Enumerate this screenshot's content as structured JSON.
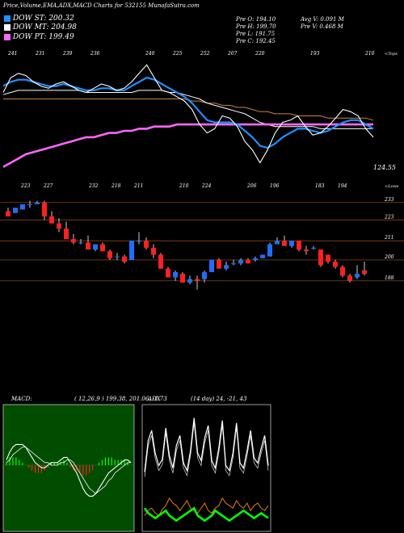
{
  "header": {
    "title": "Price,Volume,EMA,ADX,MACD Charts for 532155 MunafaSutra.com",
    "legend": [
      {
        "label": "DOW ST: 200.32",
        "color": "#1e90ff"
      },
      {
        "label": "DOW MT: 204.98",
        "color": "#ffffff"
      },
      {
        "label": "DOW PT: 199.49",
        "color": "#ff66ff"
      }
    ],
    "stats": {
      "open": "Pre  O: 194.10",
      "high": "Pre  H: 199.70",
      "low": "Pre  L: 191.75",
      "close": "Pre  C: 192.45",
      "avg_vol": "Avg V: 0.091 M",
      "pre_vol": "Pre  V: 0.468  M"
    }
  },
  "chart_data": [
    {
      "type": "line",
      "name": "ema-panel",
      "top_labels": [
        "241",
        "231",
        "239",
        "236",
        "",
        "240",
        "225",
        "252",
        "207",
        "220",
        "",
        "193",
        "",
        "210"
      ],
      "bottom_labels": [
        "223",
        "227",
        "",
        "232",
        "218",
        "211",
        "",
        "210",
        "224",
        "",
        "206",
        "196",
        "",
        "183",
        "194"
      ],
      "right_top_label": "<Tops",
      "right_bottom_label": "<Lows",
      "last_value_label": "124.55",
      "series": [
        {
          "name": "price",
          "color": "#ffffff",
          "values": [
            205,
            212,
            214,
            213,
            210,
            208,
            207,
            209,
            210,
            208,
            206,
            205,
            207,
            209,
            208,
            206,
            207,
            210,
            214,
            218,
            212,
            206,
            205,
            203,
            201,
            197,
            190,
            186,
            188,
            194,
            193,
            189,
            182,
            178,
            172,
            178,
            186,
            191,
            192,
            194,
            189,
            185,
            186,
            189,
            193,
            197,
            196,
            194,
            188,
            184
          ]
        },
        {
          "name": "ema-short",
          "color": "#1e90ff",
          "values": [
            208,
            210,
            211,
            211,
            210,
            209,
            208,
            208,
            209,
            208,
            207,
            206,
            206,
            207,
            207,
            206,
            206,
            208,
            210,
            212,
            211,
            209,
            207,
            205,
            203,
            200,
            196,
            192,
            191,
            191,
            191,
            190,
            187,
            184,
            180,
            179,
            181,
            184,
            186,
            188,
            188,
            187,
            186,
            187,
            189,
            191,
            192,
            192,
            190,
            188
          ]
        },
        {
          "name": "ema-mid",
          "color": "#ffffff",
          "values": [
            204,
            205,
            206,
            206,
            206,
            206,
            206,
            206,
            206,
            206,
            206,
            205,
            205,
            205,
            205,
            205,
            205,
            205,
            206,
            206,
            206,
            206,
            205,
            205,
            204,
            203,
            202,
            200,
            199,
            198,
            197,
            196,
            195,
            193,
            191,
            190,
            189,
            189,
            189,
            189,
            189,
            189,
            188,
            188,
            188,
            188,
            188,
            188,
            188,
            188
          ]
        },
        {
          "name": "ema-long",
          "color": "#cd853f",
          "values": [
            202,
            202,
            202,
            202,
            202,
            202,
            202,
            202,
            202,
            202,
            202,
            202,
            202,
            202,
            202,
            202,
            202,
            202,
            202,
            202,
            202,
            202,
            202,
            202,
            202,
            201,
            201,
            200,
            200,
            199,
            199,
            198,
            198,
            197,
            196,
            196,
            195,
            195,
            195,
            194,
            194,
            194,
            194,
            193,
            193,
            193,
            193,
            193,
            193,
            192
          ]
        },
        {
          "name": "ema-xlong",
          "color": "#ff66ff",
          "values": [
            170,
            172,
            174,
            176,
            177,
            178,
            179,
            180,
            181,
            182,
            183,
            184,
            184,
            185,
            186,
            186,
            187,
            187,
            188,
            188,
            189,
            189,
            189,
            190,
            190,
            190,
            190,
            190,
            190,
            190,
            190,
            190,
            190,
            190,
            190,
            190,
            190,
            190,
            190,
            190,
            190,
            190,
            190,
            190,
            190,
            190,
            190,
            190,
            190,
            190
          ]
        }
      ]
    },
    {
      "type": "candlestick",
      "name": "price-panel",
      "ylim": [
        180,
        238
      ],
      "yticks": [
        233,
        223,
        211,
        200,
        188
      ],
      "candles": [
        {
          "o": 228,
          "h": 230,
          "l": 225,
          "c": 225
        },
        {
          "o": 227,
          "h": 230,
          "l": 227,
          "c": 230
        },
        {
          "o": 229,
          "h": 232,
          "l": 229,
          "c": 232
        },
        {
          "o": 232,
          "h": 234,
          "l": 230,
          "c": 232
        },
        {
          "o": 232,
          "h": 234,
          "l": 232,
          "c": 233
        },
        {
          "o": 233,
          "h": 234,
          "l": 223,
          "c": 225
        },
        {
          "o": 225,
          "h": 228,
          "l": 221,
          "c": 221
        },
        {
          "o": 221,
          "h": 224,
          "l": 216,
          "c": 218
        },
        {
          "o": 218,
          "h": 222,
          "l": 212,
          "c": 212
        },
        {
          "o": 212,
          "h": 215,
          "l": 209,
          "c": 210
        },
        {
          "o": 210,
          "h": 212,
          "l": 209,
          "c": 210
        },
        {
          "o": 210,
          "h": 214,
          "l": 206,
          "c": 206
        },
        {
          "o": 206,
          "h": 209,
          "l": 205,
          "c": 209
        },
        {
          "o": 209,
          "h": 210,
          "l": 205,
          "c": 205
        },
        {
          "o": 205,
          "h": 206,
          "l": 200,
          "c": 201
        },
        {
          "o": 202,
          "h": 204,
          "l": 200,
          "c": 202
        },
        {
          "o": 202,
          "h": 203,
          "l": 198,
          "c": 199
        },
        {
          "o": 200,
          "h": 211,
          "l": 200,
          "c": 211
        },
        {
          "o": 211,
          "h": 216,
          "l": 209,
          "c": 211
        },
        {
          "o": 211,
          "h": 213,
          "l": 206,
          "c": 207
        },
        {
          "o": 207,
          "h": 209,
          "l": 201,
          "c": 203
        },
        {
          "o": 203,
          "h": 204,
          "l": 195,
          "c": 195
        },
        {
          "o": 195,
          "h": 196,
          "l": 190,
          "c": 190
        },
        {
          "o": 190,
          "h": 194,
          "l": 188,
          "c": 193
        },
        {
          "o": 192,
          "h": 193,
          "l": 187,
          "c": 187
        },
        {
          "o": 187,
          "h": 191,
          "l": 186,
          "c": 189
        },
        {
          "o": 189,
          "h": 191,
          "l": 183,
          "c": 188
        },
        {
          "o": 189,
          "h": 194,
          "l": 187,
          "c": 193
        },
        {
          "o": 193,
          "h": 200,
          "l": 193,
          "c": 200
        },
        {
          "o": 200,
          "h": 201,
          "l": 195,
          "c": 195
        },
        {
          "o": 195,
          "h": 199,
          "l": 194,
          "c": 197
        },
        {
          "o": 198,
          "h": 200,
          "l": 197,
          "c": 198
        },
        {
          "o": 198,
          "h": 201,
          "l": 197,
          "c": 200
        },
        {
          "o": 200,
          "h": 201,
          "l": 198,
          "c": 198
        },
        {
          "o": 200,
          "h": 202,
          "l": 199,
          "c": 201
        },
        {
          "o": 201,
          "h": 203,
          "l": 201,
          "c": 203
        },
        {
          "o": 202,
          "h": 210,
          "l": 202,
          "c": 209
        },
        {
          "o": 209,
          "h": 213,
          "l": 209,
          "c": 211
        },
        {
          "o": 211,
          "h": 214,
          "l": 208,
          "c": 208
        },
        {
          "o": 208,
          "h": 211,
          "l": 207,
          "c": 211
        },
        {
          "o": 211,
          "h": 211,
          "l": 205,
          "c": 206
        },
        {
          "o": 206,
          "h": 208,
          "l": 203,
          "c": 205
        },
        {
          "o": 207,
          "h": 208,
          "l": 206,
          "c": 207
        },
        {
          "o": 206,
          "h": 206,
          "l": 196,
          "c": 197
        },
        {
          "o": 203,
          "h": 203,
          "l": 198,
          "c": 199
        },
        {
          "o": 199,
          "h": 200,
          "l": 195,
          "c": 196
        },
        {
          "o": 196,
          "h": 197,
          "l": 190,
          "c": 191
        },
        {
          "o": 191,
          "h": 192,
          "l": 187,
          "c": 188
        },
        {
          "o": 190,
          "h": 197,
          "l": 189,
          "c": 192
        },
        {
          "o": 194,
          "h": 199,
          "l": 191,
          "c": 192
        }
      ]
    },
    {
      "type": "line",
      "name": "macd-panel",
      "label": "MACD:",
      "values_text": "( 12,26,9 ) 199.38, 201.06, -1.73",
      "series": [
        {
          "name": "macd",
          "color": "#ffffff",
          "values": [
            2,
            5,
            7,
            8,
            8,
            8,
            7,
            5,
            3,
            1,
            0,
            -1,
            -1,
            0,
            1,
            1,
            1,
            2,
            3,
            3,
            1,
            -1,
            -3,
            -6,
            -9,
            -11,
            -12,
            -12,
            -11,
            -9,
            -7,
            -5,
            -3,
            -2,
            -1,
            0,
            1,
            2,
            2,
            1
          ]
        },
        {
          "name": "signal",
          "color": "#ffffff",
          "values": [
            1,
            2,
            4,
            5,
            6,
            7,
            7,
            6,
            5,
            4,
            3,
            2,
            1,
            1,
            0,
            0,
            0,
            1,
            1,
            2,
            2,
            1,
            -1,
            -3,
            -5,
            -7,
            -9,
            -10,
            -11,
            -10,
            -9,
            -8,
            -6,
            -5,
            -3,
            -2,
            -1,
            0,
            1,
            1
          ]
        },
        {
          "name": "histogram",
          "color": "#ff2020",
          "values": [
            1,
            3,
            3,
            3,
            2,
            1,
            0,
            -1,
            -2,
            -3,
            -3,
            -3,
            -2,
            -1,
            1,
            1,
            1,
            1,
            2,
            1,
            -1,
            -2,
            -2,
            -3,
            -4,
            -4,
            -3,
            -2,
            0,
            1,
            2,
            3,
            3,
            3,
            2,
            2,
            2,
            2,
            1,
            0
          ]
        }
      ]
    },
    {
      "type": "line",
      "name": "adx-panel",
      "label": "ADX",
      "values_text": "(14 day) 24,  -21,  43",
      "series": [
        {
          "name": "di-plus",
          "color": "#ffffff",
          "values": [
            45,
            70,
            78,
            60,
            50,
            55,
            80,
            58,
            48,
            66,
            74,
            52,
            46,
            62,
            88,
            60,
            54,
            72,
            82,
            54,
            48,
            64,
            86,
            50,
            46,
            60,
            84,
            52,
            48,
            62,
            78,
            56,
            52,
            64,
            74,
            50
          ]
        },
        {
          "name": "di-minus",
          "color": "#ff8c00",
          "values": [
            10,
            14,
            16,
            12,
            10,
            15,
            18,
            24,
            20,
            18,
            14,
            18,
            22,
            16,
            14,
            12,
            16,
            20,
            14,
            12,
            16,
            18,
            24,
            20,
            18,
            16,
            22,
            18,
            16,
            20,
            14,
            18,
            20,
            16,
            14,
            18
          ]
        },
        {
          "name": "adx",
          "color": "#00ff00",
          "values": [
            16,
            12,
            10,
            8,
            10,
            12,
            14,
            10,
            8,
            6,
            8,
            10,
            12,
            14,
            16,
            10,
            8,
            6,
            8,
            10,
            14,
            12,
            10,
            8,
            6,
            8,
            10,
            12,
            14,
            12,
            10,
            8,
            10,
            12,
            10,
            8
          ]
        }
      ]
    }
  ]
}
